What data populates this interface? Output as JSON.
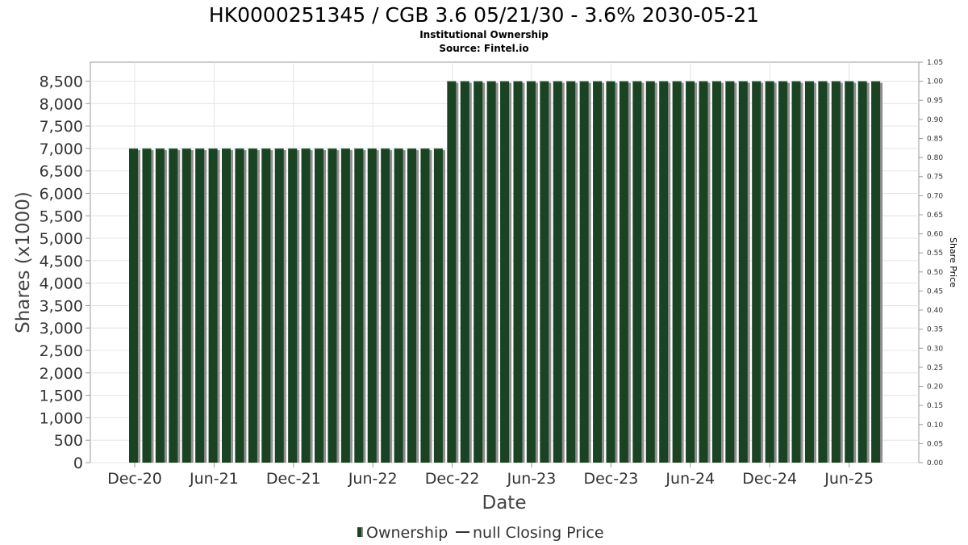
{
  "chart_data": {
    "type": "bar",
    "title": "HK0000251345 / CGB 3.6 05/21/30 - 3.6% 2030-05-21",
    "subtitle": "Institutional Ownership",
    "source": "Source: Fintel.io",
    "ylabel": "Shares (x1000)",
    "y2label": "Share Price",
    "xlabel": "Date",
    "ylim": [
      0,
      8500
    ],
    "y2lim": [
      0,
      1.05
    ],
    "y_ticks": [
      "0",
      "500",
      "1,000",
      "1,500",
      "2,000",
      "2,500",
      "3,000",
      "3,500",
      "4,000",
      "4,500",
      "5,000",
      "5,500",
      "6,000",
      "6,500",
      "7,000",
      "7,500",
      "8,000",
      "8,500"
    ],
    "y2_ticks": [
      "0.00",
      "0.05",
      "0.10",
      "0.15",
      "0.20",
      "0.25",
      "0.30",
      "0.35",
      "0.40",
      "0.45",
      "0.50",
      "0.55",
      "0.60",
      "0.65",
      "0.70",
      "0.75",
      "0.80",
      "0.85",
      "0.90",
      "0.95",
      "1.00",
      "1.05"
    ],
    "x_ticks": [
      "Dec-20",
      "Jun-21",
      "Dec-21",
      "Jun-22",
      "Dec-22",
      "Jun-23",
      "Dec-23",
      "Jun-24",
      "Dec-24",
      "Jun-25"
    ],
    "grid": true,
    "legend_position": "bottom-center",
    "series": [
      {
        "name": "Ownership",
        "color": "#1a4323",
        "values": [
          7000,
          7000,
          7000,
          7000,
          7000,
          7000,
          7000,
          7000,
          7000,
          7000,
          7000,
          7000,
          7000,
          7000,
          7000,
          7000,
          7000,
          7000,
          7000,
          7000,
          7000,
          7000,
          7000,
          7000,
          8500,
          8500,
          8500,
          8500,
          8500,
          8500,
          8500,
          8500,
          8500,
          8500,
          8500,
          8500,
          8500,
          8500,
          8500,
          8500,
          8500,
          8500,
          8500,
          8500,
          8500,
          8500,
          8500,
          8500,
          8500,
          8500,
          8500,
          8500,
          8500,
          8500,
          8500,
          8500,
          8500
        ]
      },
      {
        "name": "null Closing Price",
        "color": "#333333",
        "values": []
      }
    ]
  }
}
